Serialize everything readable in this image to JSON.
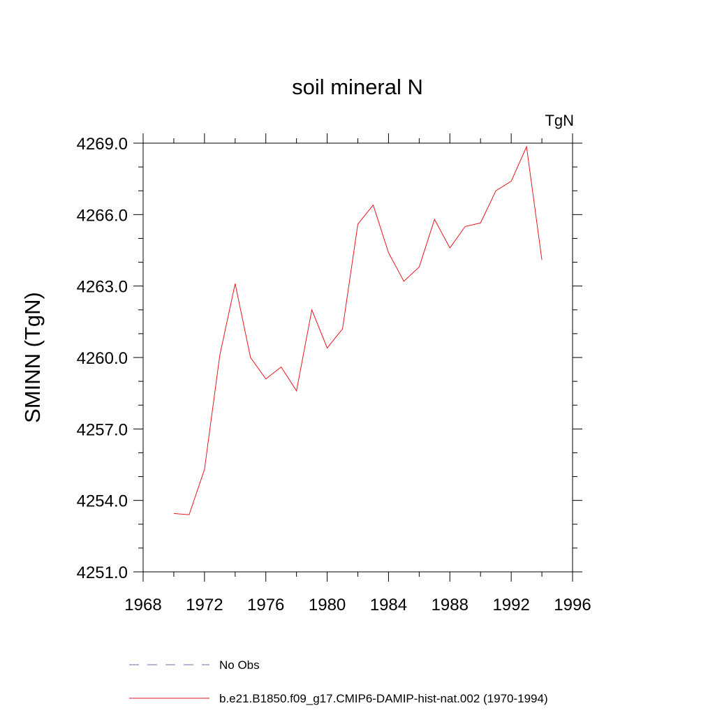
{
  "chart_data": {
    "type": "line",
    "title": "soil mineral N",
    "units_label": "TgN",
    "ylabel": "SMINN  (TgN)",
    "xlabel": "",
    "xlim": [
      1968,
      1996
    ],
    "ylim": [
      4251.0,
      4269.0
    ],
    "x_ticks": [
      "1968",
      "1972",
      "1976",
      "1980",
      "1984",
      "1988",
      "1992",
      "1996"
    ],
    "y_ticks": [
      "4251.0",
      "4254.0",
      "4257.0",
      "4260.0",
      "4263.0",
      "4266.0",
      "4269.0"
    ],
    "grid": false,
    "legend_position": "bottom",
    "series": [
      {
        "name": "No Obs",
        "color": "#6b6bb0",
        "style": "dashed",
        "x": [],
        "y": []
      },
      {
        "name": "b.e21.B1850.f09_g17.CMIP6-DAMIP-hist-nat.002 (1970-1994)",
        "color": "#e8161c",
        "style": "solid",
        "x": [
          1970,
          1971,
          1972,
          1973,
          1974,
          1975,
          1976,
          1977,
          1978,
          1979,
          1980,
          1981,
          1982,
          1983,
          1984,
          1985,
          1986,
          1987,
          1988,
          1989,
          1990,
          1991,
          1992,
          1993,
          1994
        ],
        "y": [
          4253.45,
          4253.4,
          4255.3,
          4260.1,
          4263.1,
          4260.0,
          4259.1,
          4259.6,
          4258.6,
          4262.0,
          4260.4,
          4261.2,
          4265.6,
          4266.4,
          4264.4,
          4263.2,
          4263.8,
          4265.8,
          4264.6,
          4265.5,
          4265.65,
          4267.0,
          4267.4,
          4268.85,
          4264.1
        ]
      }
    ]
  }
}
